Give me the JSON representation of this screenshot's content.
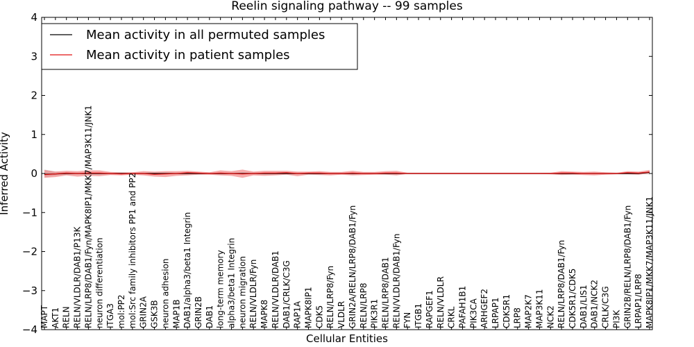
{
  "chart_data": {
    "type": "line",
    "title": "Reelin signaling pathway -- 99 samples",
    "xlabel": "Cellular Entities",
    "ylabel": "Inferred Activity",
    "ylim": [
      -4,
      4
    ],
    "yticks": [
      -4,
      -3,
      -2,
      -1,
      0,
      1,
      2,
      3,
      4
    ],
    "ytick_labels": [
      "−4",
      "−3",
      "−2",
      "−1",
      "0",
      "1",
      "2",
      "3",
      "4"
    ],
    "legend_position": "top-left",
    "grid": false,
    "categories": [
      "MAPT",
      "AKT1",
      "RELN",
      "RELN/VLDLR/DAB1/P13K",
      "RELN/LRP8/DAB1/Fyn/MAPK8IP1/MKK7/MAP3K11/JNK1",
      "neuron differentiation",
      "ITGA3",
      "mol:PP2",
      "mol:Src family inhibitors PP1 and PP2",
      "GRIN2A",
      "GSK3B",
      "neuron adhesion",
      "MAP1B",
      "DAB1/alpha3/beta1 Integrin",
      "GRIN2B",
      "DAB1",
      "long-term memory",
      "alpha3/beta1 Integrin",
      "neuron migration",
      "RELN/VLDLR/Fyn",
      "MAPK8",
      "RELN/VLDLR/DAB1",
      "DAB1/CRLK/C3G",
      "RAP1A",
      "MAPK8IP1",
      "CDK5",
      "RELN/LRP8/Fyn",
      "VLDLR",
      "GRIN2A/RELN/LRP8/DAB1/Fyn",
      "RELN/LRP8",
      "PIK3R1",
      "RELN/LRP8/DAB1",
      "RELN/VLDLR/DAB1/Fyn",
      "FYN",
      "ITGB1",
      "RAPGEF1",
      "RELN/VLDLR",
      "CRKL",
      "PAFAH1B1",
      "PIK3CA",
      "ARHGEF2",
      "LRPAP1",
      "CDK5R1",
      "LRP8",
      "MAP2K7",
      "MAP3K11",
      "NCK2",
      "RELN/LRP8/DAB1/Fyn",
      "CDK5R1/CDK5",
      "DAB1/LIS1",
      "DAB1/NCK2",
      "CRLK/C3G",
      "PI3K",
      "GRIN2B/RELN/LRP8/DAB1/Fyn",
      "LRPAP1/LRP8",
      "MAPK8IP1/MKK7/MAP3K11/JNK1"
    ],
    "series": [
      {
        "name": "Mean activity in all permuted samples",
        "color": "#000000",
        "values": [
          -0.02,
          -0.01,
          0.0,
          0.0,
          0.0,
          0.0,
          0.0,
          0.0,
          0.0,
          0.0,
          0.0,
          0.0,
          0.0,
          0.0,
          0.0,
          0.0,
          0.0,
          0.0,
          0.0,
          0.0,
          0.0,
          0.0,
          0.0,
          0.0,
          0.0,
          0.0,
          0.0,
          0.0,
          0.0,
          0.0,
          0.0,
          0.0,
          0.0,
          0.0,
          0.0,
          0.0,
          0.0,
          0.0,
          0.0,
          0.0,
          0.0,
          0.0,
          0.0,
          0.0,
          0.0,
          0.0,
          0.0,
          0.0,
          0.0,
          0.0,
          0.0,
          0.0,
          0.0,
          0.0,
          0.0,
          0.03
        ],
        "band": {
          "color": "#bbbbbb",
          "lower": [
            -0.1,
            -0.05,
            -0.03,
            -0.02,
            -0.02,
            -0.02,
            -0.02,
            -0.02,
            -0.02,
            -0.02,
            -0.02,
            -0.02,
            -0.02,
            -0.02,
            -0.02,
            -0.02,
            -0.02,
            -0.02,
            -0.02,
            -0.02,
            -0.02,
            -0.02,
            -0.02,
            -0.02,
            -0.02,
            -0.02,
            -0.02,
            -0.02,
            -0.02,
            -0.02,
            -0.02,
            -0.02,
            -0.02,
            -0.02,
            -0.02,
            -0.02,
            -0.02,
            -0.02,
            -0.02,
            -0.02,
            -0.02,
            -0.02,
            -0.02,
            -0.02,
            -0.02,
            -0.02,
            -0.02,
            -0.02,
            -0.02,
            -0.02,
            -0.02,
            -0.02,
            -0.02,
            -0.02,
            -0.02,
            -0.02
          ],
          "upper": [
            0.1,
            0.05,
            0.03,
            0.02,
            0.02,
            0.02,
            0.02,
            0.02,
            0.02,
            0.02,
            0.02,
            0.02,
            0.02,
            0.02,
            0.02,
            0.02,
            0.02,
            0.02,
            0.02,
            0.02,
            0.02,
            0.02,
            0.02,
            0.02,
            0.02,
            0.02,
            0.02,
            0.02,
            0.02,
            0.02,
            0.02,
            0.02,
            0.02,
            0.02,
            0.02,
            0.02,
            0.02,
            0.02,
            0.02,
            0.02,
            0.02,
            0.02,
            0.02,
            0.02,
            0.02,
            0.02,
            0.02,
            0.02,
            0.02,
            0.02,
            0.02,
            0.02,
            0.02,
            0.02,
            0.02,
            0.05
          ]
        }
      },
      {
        "name": "Mean activity in patient samples",
        "color": "#e01010",
        "values": [
          -0.03,
          -0.01,
          0.01,
          0.0,
          0.01,
          0.01,
          0.0,
          -0.01,
          0.0,
          0.0,
          -0.02,
          -0.01,
          0.0,
          0.02,
          0.01,
          0.0,
          0.01,
          0.0,
          -0.01,
          0.0,
          0.01,
          0.01,
          0.02,
          0.0,
          0.01,
          0.01,
          0.0,
          0.0,
          0.01,
          0.0,
          0.0,
          0.01,
          0.01,
          0.0,
          0.0,
          0.0,
          0.0,
          0.0,
          0.0,
          0.0,
          0.0,
          0.0,
          0.0,
          0.0,
          0.0,
          0.0,
          0.0,
          0.01,
          0.01,
          0.0,
          0.0,
          0.0,
          0.0,
          0.02,
          0.01,
          0.04
        ],
        "band": {
          "color": "#f08080",
          "lower": [
            -0.11,
            -0.09,
            -0.05,
            -0.08,
            -0.06,
            -0.07,
            -0.04,
            -0.05,
            -0.03,
            -0.05,
            -0.08,
            -0.09,
            -0.06,
            -0.05,
            -0.03,
            -0.03,
            -0.05,
            -0.06,
            -0.11,
            -0.05,
            -0.06,
            -0.05,
            -0.03,
            -0.07,
            -0.03,
            -0.04,
            -0.05,
            -0.03,
            -0.05,
            -0.04,
            -0.03,
            -0.03,
            -0.05,
            -0.01,
            -0.01,
            -0.01,
            -0.01,
            -0.01,
            -0.01,
            -0.01,
            -0.01,
            -0.01,
            -0.01,
            -0.01,
            -0.01,
            -0.01,
            -0.02,
            -0.04,
            -0.03,
            -0.04,
            -0.05,
            -0.03,
            -0.02,
            -0.02,
            -0.03,
            0.0
          ],
          "upper": [
            0.09,
            0.05,
            0.07,
            0.06,
            0.08,
            0.08,
            0.04,
            0.03,
            0.03,
            0.06,
            0.05,
            0.06,
            0.06,
            0.07,
            0.05,
            0.03,
            0.08,
            0.06,
            0.1,
            0.05,
            0.07,
            0.07,
            0.07,
            0.05,
            0.05,
            0.06,
            0.04,
            0.04,
            0.07,
            0.04,
            0.04,
            0.06,
            0.07,
            0.02,
            0.02,
            0.02,
            0.02,
            0.02,
            0.02,
            0.02,
            0.02,
            0.02,
            0.02,
            0.02,
            0.02,
            0.02,
            0.02,
            0.06,
            0.05,
            0.04,
            0.05,
            0.03,
            0.02,
            0.06,
            0.05,
            0.09
          ]
        }
      }
    ]
  }
}
